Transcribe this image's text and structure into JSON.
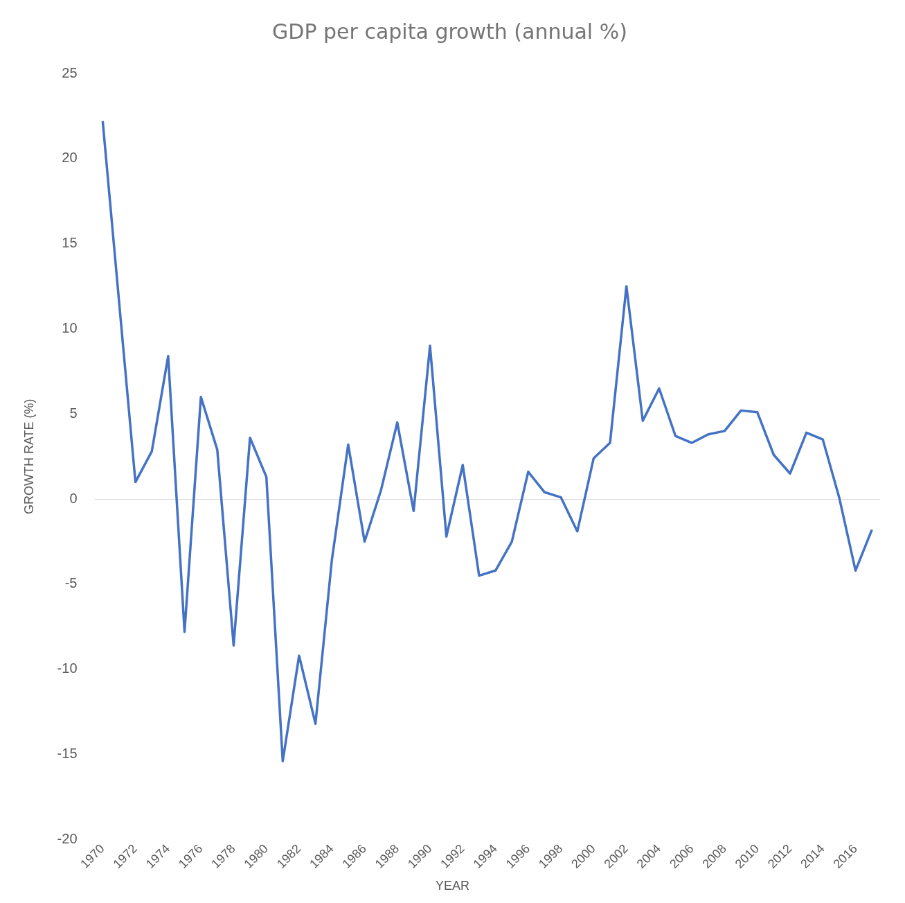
{
  "chart_data": {
    "type": "line",
    "title": "GDP per capita growth (annual %)",
    "xlabel": "YEAR",
    "ylabel": "GROWTH RATE (%)",
    "categories": [
      "1970",
      null,
      "1972",
      null,
      "1974",
      null,
      "1976",
      null,
      "1978",
      null,
      "1980",
      null,
      "1982",
      null,
      "1984",
      null,
      "1986",
      null,
      "1988",
      null,
      "1990",
      null,
      "1992",
      null,
      "1994",
      null,
      "1996",
      null,
      "1998",
      null,
      "2000",
      null,
      "2002",
      null,
      "2004",
      null,
      "2006",
      null,
      "2008",
      null,
      "2010",
      null,
      "2012",
      null,
      "2014",
      null,
      "2016",
      null
    ],
    "series": [
      {
        "color": "#4472c4",
        "values": [
          22.2,
          11.6,
          1.0,
          2.8,
          8.4,
          -7.8,
          6.0,
          2.9,
          -8.6,
          3.6,
          1.3,
          -15.4,
          -9.2,
          -13.2,
          -3.6,
          3.2,
          -2.5,
          0.5,
          4.5,
          -0.7,
          9.0,
          -2.2,
          2.0,
          -4.5,
          -4.2,
          -2.5,
          1.6,
          0.4,
          0.1,
          -1.9,
          2.4,
          3.3,
          12.5,
          4.6,
          6.5,
          3.7,
          3.3,
          3.8,
          4.0,
          5.2,
          5.1,
          2.6,
          1.5,
          3.9,
          3.5,
          0.1,
          -4.2,
          -1.8
        ]
      }
    ],
    "ylim": [
      -20,
      25
    ],
    "yticks": [
      -20,
      -15,
      -10,
      -5,
      0,
      5,
      10,
      15,
      20,
      25
    ],
    "ref_lines": [
      {
        "axis": "y",
        "value": 0,
        "color": "#d9d9d9"
      }
    ],
    "grid": false,
    "legend": false,
    "marker": "none",
    "line_style": "solid"
  }
}
